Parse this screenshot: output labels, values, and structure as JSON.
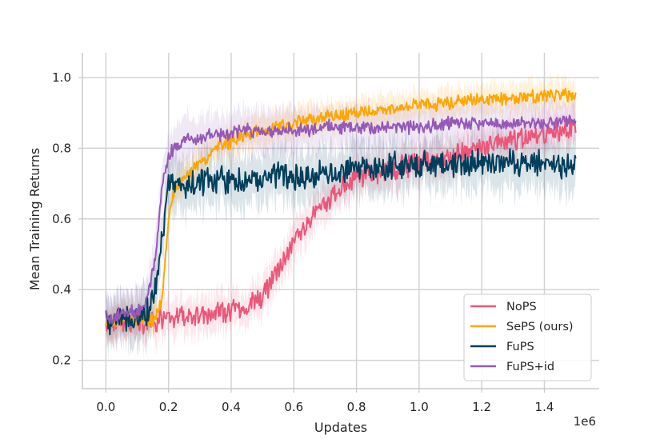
{
  "chart_data": {
    "type": "line",
    "title": "",
    "xlabel": "Updates",
    "ylabel": "Mean Training Returns",
    "x_offset_label": "1e6",
    "xlim": [
      -0.075,
      1.575
    ],
    "ylim": [
      0.12,
      1.07
    ],
    "xticks": [
      0.0,
      0.2,
      0.4,
      0.6,
      0.8,
      1.0,
      1.2,
      1.4
    ],
    "xtick_labels": [
      "0.0",
      "0.2",
      "0.4",
      "0.6",
      "0.8",
      "1.0",
      "1.2",
      "1.4"
    ],
    "yticks": [
      0.2,
      0.4,
      0.6,
      0.8,
      1.0
    ],
    "ytick_labels": [
      "0.2",
      "0.4",
      "0.6",
      "0.8",
      "1.0"
    ],
    "grid": true,
    "legend_position": "lower-right",
    "x": [
      0.0,
      0.05,
      0.1,
      0.13,
      0.16,
      0.18,
      0.2,
      0.22,
      0.25,
      0.3,
      0.35,
      0.4,
      0.45,
      0.5,
      0.55,
      0.6,
      0.65,
      0.7,
      0.8,
      0.9,
      1.0,
      1.1,
      1.2,
      1.3,
      1.4,
      1.5
    ],
    "series": [
      {
        "name": "NoPS",
        "color": "#ec5679",
        "values": [
          0.3,
          0.31,
          0.31,
          0.31,
          0.31,
          0.32,
          0.32,
          0.32,
          0.33,
          0.33,
          0.33,
          0.34,
          0.35,
          0.38,
          0.46,
          0.54,
          0.6,
          0.65,
          0.72,
          0.74,
          0.76,
          0.78,
          0.8,
          0.82,
          0.84,
          0.86
        ],
        "noise": 0.025,
        "band": 0.05
      },
      {
        "name": "SePS (ours)",
        "color": "#ffa600",
        "values": [
          0.3,
          0.32,
          0.31,
          0.31,
          0.32,
          0.38,
          0.6,
          0.68,
          0.72,
          0.76,
          0.8,
          0.82,
          0.84,
          0.85,
          0.86,
          0.87,
          0.88,
          0.89,
          0.9,
          0.91,
          0.92,
          0.93,
          0.94,
          0.94,
          0.95,
          0.95
        ],
        "noise": 0.015,
        "band": 0.04
      },
      {
        "name": "FuPS",
        "color": "#003f5c",
        "values": [
          0.31,
          0.32,
          0.32,
          0.33,
          0.4,
          0.55,
          0.69,
          0.7,
          0.7,
          0.71,
          0.71,
          0.71,
          0.71,
          0.71,
          0.72,
          0.72,
          0.72,
          0.73,
          0.74,
          0.75,
          0.75,
          0.76,
          0.76,
          0.76,
          0.76,
          0.75
        ],
        "noise": 0.03,
        "band": 0.07
      },
      {
        "name": "FuPS+id",
        "color": "#9559b8",
        "values": [
          0.32,
          0.33,
          0.34,
          0.37,
          0.5,
          0.7,
          0.78,
          0.8,
          0.82,
          0.83,
          0.84,
          0.84,
          0.85,
          0.85,
          0.85,
          0.85,
          0.85,
          0.86,
          0.86,
          0.86,
          0.86,
          0.87,
          0.87,
          0.87,
          0.87,
          0.88
        ],
        "noise": 0.015,
        "band": 0.06
      }
    ]
  }
}
